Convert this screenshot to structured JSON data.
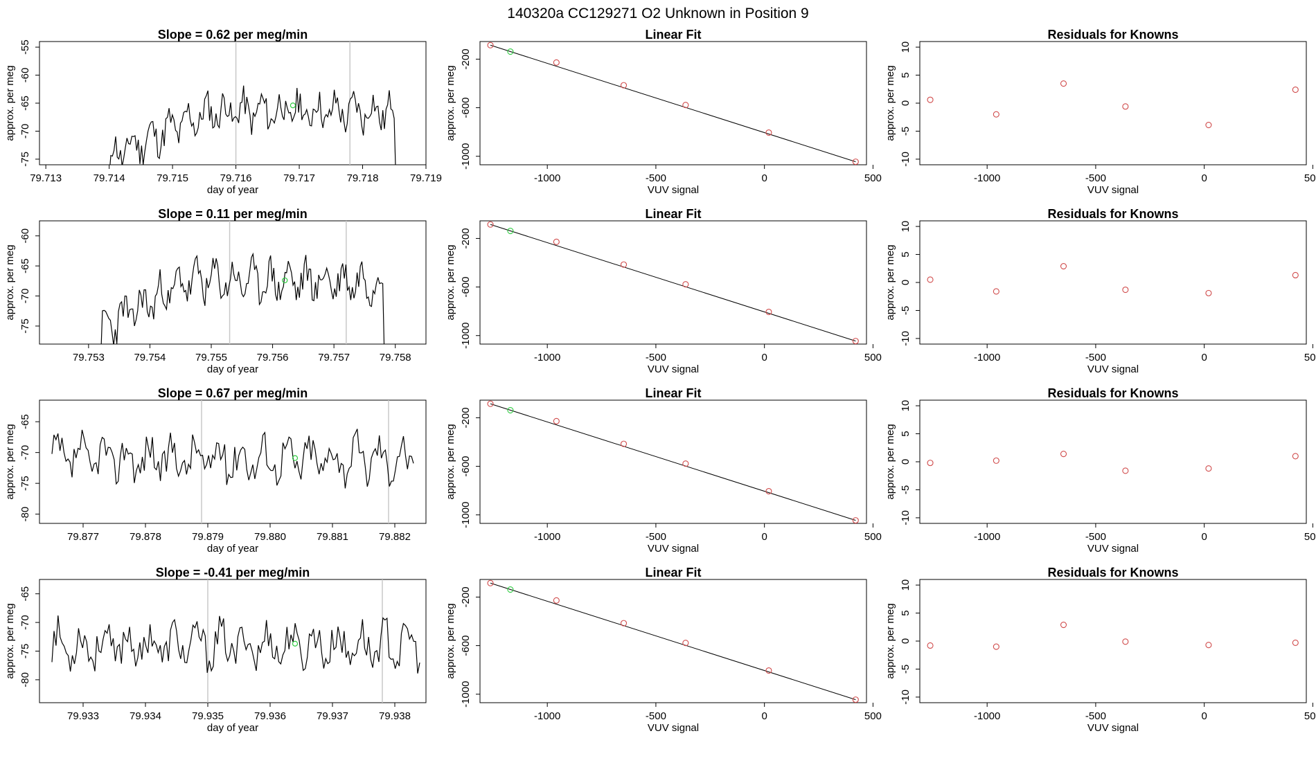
{
  "page_title": "140320a      CC129271   O2 Unknown in Position  9",
  "colors": {
    "trace": "#000000",
    "fit_point": "#d04a4a",
    "unknown_point": "#2ecc40",
    "marker_line": "#c8c8c8",
    "fit_line": "#000000"
  },
  "fit_axis_labels": {
    "x": "VUV signal",
    "y": "approx. per meg"
  },
  "residual_axis_labels": {
    "x": "VUV signal",
    "y": "approx. per meg"
  },
  "time_axis_labels": {
    "x": "day of year",
    "y": "approx. per meg"
  },
  "rows": [
    {
      "time_title": "Slope =  0.62  per meg/min",
      "fit_title": "Linear Fit",
      "resid_title": "Residuals for Knowns",
      "time_xlim": [
        79.7129,
        79.719
      ],
      "time_ylim": [
        -76,
        -54
      ],
      "time_xticks": [
        "79.713",
        "79.714",
        "79.715",
        "79.716",
        "79.717",
        "79.718",
        "79.719"
      ],
      "time_xtick_values": [
        79.713,
        79.714,
        79.715,
        79.716,
        79.717,
        79.718,
        79.719
      ],
      "time_yticks": [
        "-55",
        "-60",
        "-65",
        "-70",
        "-75"
      ],
      "time_ytick_values": [
        -55,
        -60,
        -65,
        -70,
        -75
      ],
      "time_start": 79.714,
      "time_end": 79.7186,
      "time_baseline": -66.5,
      "time_amp": 2.6,
      "time_seed": 11,
      "time_rise": 0.35,
      "time_vlines": [
        79.716,
        79.7178
      ],
      "time_unknown_point": {
        "x": 79.7169,
        "y": -65.4
      },
      "fit_known_x": [
        -1262,
        -958,
        -648,
        -363,
        20,
        420
      ],
      "fit_known_y": [
        -85,
        -228,
        -415,
        -578,
        -805,
        -1045
      ],
      "fit_unknown": {
        "x": -1170,
        "y": -138
      },
      "resid_y": [
        0.6,
        -2.0,
        3.5,
        -0.6,
        -3.9,
        2.4
      ]
    },
    {
      "time_title": "Slope =  0.11  per meg/min",
      "fit_title": "Linear Fit",
      "resid_title": "Residuals for Knowns",
      "time_xlim": [
        79.7522,
        79.7585
      ],
      "time_ylim": [
        -78,
        -57.5
      ],
      "time_xticks": [
        "79.753",
        "79.754",
        "79.755",
        "79.756",
        "79.757",
        "79.758"
      ],
      "time_xtick_values": [
        79.753,
        79.754,
        79.755,
        79.756,
        79.757,
        79.758
      ],
      "time_yticks": [
        "-60",
        "-65",
        "-70",
        "-75"
      ],
      "time_ytick_values": [
        -60,
        -65,
        -70,
        -75
      ],
      "time_start": 79.7532,
      "time_end": 79.7579,
      "time_baseline": -67.5,
      "time_amp": 2.6,
      "time_seed": 23,
      "time_rise": 0.3,
      "time_vlines": [
        79.7553,
        79.7572
      ],
      "time_unknown_point": {
        "x": 79.7562,
        "y": -67.4
      },
      "fit_known_x": [
        -1262,
        -958,
        -648,
        -363,
        20,
        420
      ],
      "fit_known_y": [
        -85,
        -228,
        -415,
        -578,
        -805,
        -1045
      ],
      "fit_unknown": {
        "x": -1170,
        "y": -138
      },
      "resid_y": [
        0.5,
        -1.6,
        2.9,
        -1.3,
        -1.9,
        1.3
      ]
    },
    {
      "time_title": "Slope =  0.67  per meg/min",
      "fit_title": "Linear Fit",
      "resid_title": "Residuals for Knowns",
      "time_xlim": [
        79.8763,
        79.8825
      ],
      "time_ylim": [
        -81.5,
        -61.5
      ],
      "time_xticks": [
        "79.877",
        "79.878",
        "79.879",
        "79.880",
        "79.881",
        "79.882"
      ],
      "time_xtick_values": [
        79.877,
        79.878,
        79.879,
        79.88,
        79.881,
        79.882
      ],
      "time_yticks": [
        "-65",
        "-70",
        "-75",
        "-80"
      ],
      "time_ytick_values": [
        -65,
        -70,
        -75,
        -80
      ],
      "time_start": 79.8765,
      "time_end": 79.8823,
      "time_baseline": -71.0,
      "time_amp": 2.8,
      "time_seed": 37,
      "time_rise": 0.0,
      "time_vlines": [
        79.8789,
        79.8819
      ],
      "time_unknown_point": {
        "x": 79.8804,
        "y": -70.9
      },
      "fit_known_x": [
        -1262,
        -958,
        -648,
        -363,
        20,
        420
      ],
      "fit_known_y": [
        -85,
        -228,
        -415,
        -578,
        -805,
        -1045
      ],
      "fit_unknown": {
        "x": -1170,
        "y": -138
      },
      "resid_y": [
        -0.2,
        0.2,
        1.4,
        -1.6,
        -1.2,
        1.0
      ]
    },
    {
      "time_title": "Slope =  -0.41  per meg/min",
      "fit_title": "Linear Fit",
      "resid_title": "Residuals for Knowns",
      "time_xlim": [
        79.9323,
        79.9385
      ],
      "time_ylim": [
        -84,
        -62.5
      ],
      "time_xticks": [
        "79.933",
        "79.934",
        "79.935",
        "79.936",
        "79.937",
        "79.938"
      ],
      "time_xtick_values": [
        79.933,
        79.934,
        79.935,
        79.936,
        79.937,
        79.938
      ],
      "time_yticks": [
        "-65",
        "-70",
        "-75",
        "-80"
      ],
      "time_ytick_values": [
        -65,
        -70,
        -75,
        -80
      ],
      "time_start": 79.9325,
      "time_end": 79.9384,
      "time_baseline": -74.0,
      "time_amp": 3.0,
      "time_seed": 53,
      "time_rise": 0.0,
      "time_vlines": [
        79.935,
        79.9378
      ],
      "time_unknown_point": {
        "x": 79.9364,
        "y": -73.7
      },
      "fit_known_x": [
        -1262,
        -958,
        -648,
        -363,
        20,
        420
      ],
      "fit_known_y": [
        -85,
        -228,
        -415,
        -578,
        -805,
        -1045
      ],
      "fit_unknown": {
        "x": -1170,
        "y": -138
      },
      "resid_y": [
        -0.8,
        -1.0,
        2.9,
        -0.1,
        -0.7,
        -0.3
      ]
    }
  ],
  "fit_xlim": [
    -1310,
    470
  ],
  "fit_ylim": [
    -1070,
    -55
  ],
  "fit_xticks": [
    "-1000",
    "-500",
    "0",
    "500"
  ],
  "fit_xtick_values": [
    -1000,
    -500,
    0,
    500
  ],
  "fit_yticks": [
    "-200",
    "-600",
    "-1000"
  ],
  "fit_ytick_values": [
    -200,
    -600,
    -1000
  ],
  "resid_xlim": [
    -1310,
    470
  ],
  "resid_ylim": [
    -11,
    11
  ],
  "resid_xticks": [
    "-1000",
    "-500",
    "0",
    "500"
  ],
  "resid_xtick_values": [
    -1000,
    -500,
    0,
    500
  ],
  "resid_yticks": [
    "10",
    "5",
    "0",
    "-5",
    "-10"
  ],
  "resid_ytick_values": [
    10,
    5,
    0,
    -5,
    -10
  ],
  "chart_data": [
    {
      "type": "line",
      "title": "Slope =  0.62  per meg/min",
      "xlabel": "day of year",
      "ylabel": "approx. per meg",
      "xlim": [
        79.7129,
        79.719
      ],
      "ylim": [
        -76,
        -54
      ]
    },
    {
      "type": "scatter",
      "title": "Linear Fit",
      "xlabel": "VUV signal",
      "ylabel": "approx. per meg",
      "series": [
        {
          "name": "knowns",
          "x": [
            -1262,
            -958,
            -648,
            -363,
            20,
            420
          ],
          "y": [
            -85,
            -228,
            -415,
            -578,
            -805,
            -1045
          ]
        },
        {
          "name": "unknown",
          "x": [
            -1170
          ],
          "y": [
            -138
          ]
        }
      ]
    },
    {
      "type": "scatter",
      "title": "Residuals for Knowns",
      "xlabel": "VUV signal",
      "ylabel": "approx. per meg",
      "series": [
        {
          "name": "row1",
          "x": [
            -1262,
            -958,
            -648,
            -363,
            20,
            420
          ],
          "y": [
            0.6,
            -2.0,
            3.5,
            -0.6,
            -3.9,
            2.4
          ]
        },
        {
          "name": "row2",
          "x": [
            -1262,
            -958,
            -648,
            -363,
            20,
            420
          ],
          "y": [
            0.5,
            -1.6,
            2.9,
            -1.3,
            -1.9,
            1.3
          ]
        },
        {
          "name": "row3",
          "x": [
            -1262,
            -958,
            -648,
            -363,
            20,
            420
          ],
          "y": [
            -0.2,
            0.2,
            1.4,
            -1.6,
            -1.2,
            1.0
          ]
        },
        {
          "name": "row4",
          "x": [
            -1262,
            -958,
            -648,
            -363,
            20,
            420
          ],
          "y": [
            -0.8,
            -1.0,
            2.9,
            -0.1,
            -0.7,
            -0.3
          ]
        }
      ]
    }
  ]
}
